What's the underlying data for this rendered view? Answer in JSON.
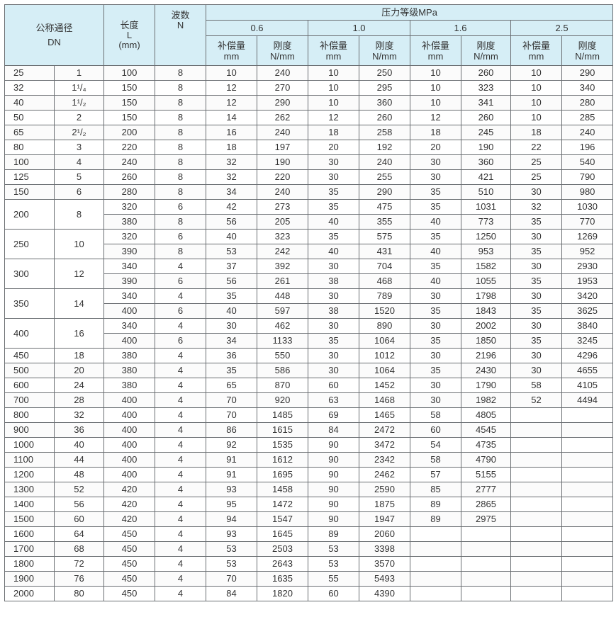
{
  "header": {
    "nominal_diameter": "公称通径",
    "dn": "DN",
    "length": "长度",
    "length_sym": "L",
    "length_unit": "(mm)",
    "waves": "波数",
    "waves_sym": "N",
    "pressure_class": "压力等级MPa",
    "pressures": [
      "0.6",
      "1.0",
      "1.6",
      "2.5"
    ],
    "comp_label": "补偿量",
    "comp_unit": "mm",
    "stiff_label": "刚度",
    "stiff_unit": "N/mm"
  },
  "groups": [
    {
      "dn": "25",
      "inch": "1",
      "rows": [
        {
          "L": "100",
          "N": "8",
          "v": [
            "10",
            "240",
            "10",
            "250",
            "10",
            "260",
            "10",
            "290"
          ]
        }
      ]
    },
    {
      "dn": "32",
      "inch": "1¹/₄",
      "rows": [
        {
          "L": "150",
          "N": "8",
          "v": [
            "12",
            "270",
            "10",
            "295",
            "10",
            "323",
            "10",
            "340"
          ]
        }
      ]
    },
    {
      "dn": "40",
      "inch": "1¹/₂",
      "rows": [
        {
          "L": "150",
          "N": "8",
          "v": [
            "12",
            "290",
            "10",
            "360",
            "10",
            "341",
            "10",
            "280"
          ]
        }
      ]
    },
    {
      "dn": "50",
      "inch": "2",
      "rows": [
        {
          "L": "150",
          "N": "8",
          "v": [
            "14",
            "262",
            "12",
            "260",
            "12",
            "260",
            "10",
            "285"
          ]
        }
      ]
    },
    {
      "dn": "65",
      "inch": "2¹/₂",
      "rows": [
        {
          "L": "200",
          "N": "8",
          "v": [
            "16",
            "240",
            "18",
            "258",
            "18",
            "245",
            "18",
            "240"
          ]
        }
      ]
    },
    {
      "dn": "80",
      "inch": "3",
      "rows": [
        {
          "L": "220",
          "N": "8",
          "v": [
            "18",
            "197",
            "20",
            "192",
            "20",
            "190",
            "22",
            "196"
          ]
        }
      ]
    },
    {
      "dn": "100",
      "inch": "4",
      "rows": [
        {
          "L": "240",
          "N": "8",
          "v": [
            "32",
            "190",
            "30",
            "240",
            "30",
            "360",
            "25",
            "540"
          ]
        }
      ]
    },
    {
      "dn": "125",
      "inch": "5",
      "rows": [
        {
          "L": "260",
          "N": "8",
          "v": [
            "32",
            "220",
            "30",
            "255",
            "30",
            "421",
            "25",
            "790"
          ]
        }
      ]
    },
    {
      "dn": "150",
      "inch": "6",
      "rows": [
        {
          "L": "280",
          "N": "8",
          "v": [
            "34",
            "240",
            "35",
            "290",
            "35",
            "510",
            "30",
            "980"
          ]
        }
      ]
    },
    {
      "dn": "200",
      "inch": "8",
      "rows": [
        {
          "L": "320",
          "N": "6",
          "v": [
            "42",
            "273",
            "35",
            "475",
            "35",
            "1031",
            "32",
            "1030"
          ]
        },
        {
          "L": "380",
          "N": "8",
          "v": [
            "56",
            "205",
            "40",
            "355",
            "40",
            "773",
            "35",
            "770"
          ]
        }
      ]
    },
    {
      "dn": "250",
      "inch": "10",
      "rows": [
        {
          "L": "320",
          "N": "6",
          "v": [
            "40",
            "323",
            "35",
            "575",
            "35",
            "1250",
            "30",
            "1269"
          ]
        },
        {
          "L": "390",
          "N": "8",
          "v": [
            "53",
            "242",
            "40",
            "431",
            "40",
            "953",
            "35",
            "952"
          ]
        }
      ]
    },
    {
      "dn": "300",
      "inch": "12",
      "rows": [
        {
          "L": "340",
          "N": "4",
          "v": [
            "37",
            "392",
            "30",
            "704",
            "35",
            "1582",
            "30",
            "2930"
          ]
        },
        {
          "L": "390",
          "N": "6",
          "v": [
            "56",
            "261",
            "38",
            "468",
            "40",
            "1055",
            "35",
            "1953"
          ]
        }
      ]
    },
    {
      "dn": "350",
      "inch": "14",
      "rows": [
        {
          "L": "340",
          "N": "4",
          "v": [
            "35",
            "448",
            "30",
            "789",
            "30",
            "1798",
            "30",
            "3420"
          ]
        },
        {
          "L": "400",
          "N": "6",
          "v": [
            "40",
            "597",
            "38",
            "1520",
            "35",
            "1843",
            "35",
            "3625"
          ]
        }
      ]
    },
    {
      "dn": "400",
      "inch": "16",
      "rows": [
        {
          "L": "340",
          "N": "4",
          "v": [
            "30",
            "462",
            "30",
            "890",
            "30",
            "2002",
            "30",
            "3840"
          ]
        },
        {
          "L": "400",
          "N": "6",
          "v": [
            "34",
            "1133",
            "35",
            "1064",
            "35",
            "1850",
            "35",
            "3245"
          ]
        }
      ]
    },
    {
      "dn": "450",
      "inch": "18",
      "rows": [
        {
          "L": "380",
          "N": "4",
          "v": [
            "36",
            "550",
            "30",
            "1012",
            "30",
            "2196",
            "30",
            "4296"
          ]
        }
      ]
    },
    {
      "dn": "500",
      "inch": "20",
      "rows": [
        {
          "L": "380",
          "N": "4",
          "v": [
            "35",
            "586",
            "30",
            "1064",
            "35",
            "2430",
            "30",
            "4655"
          ]
        }
      ]
    },
    {
      "dn": "600",
      "inch": "24",
      "rows": [
        {
          "L": "380",
          "N": "4",
          "v": [
            "65",
            "870",
            "60",
            "1452",
            "30",
            "1790",
            "58",
            "4105"
          ]
        }
      ]
    },
    {
      "dn": "700",
      "inch": "28",
      "rows": [
        {
          "L": "400",
          "N": "4",
          "v": [
            "70",
            "920",
            "63",
            "1468",
            "30",
            "1982",
            "52",
            "4494"
          ]
        }
      ]
    },
    {
      "dn": "800",
      "inch": "32",
      "rows": [
        {
          "L": "400",
          "N": "4",
          "v": [
            "70",
            "1485",
            "69",
            "1465",
            "58",
            "4805",
            "",
            ""
          ]
        }
      ]
    },
    {
      "dn": "900",
      "inch": "36",
      "rows": [
        {
          "L": "400",
          "N": "4",
          "v": [
            "86",
            "1615",
            "84",
            "2472",
            "60",
            "4545",
            "",
            ""
          ]
        }
      ]
    },
    {
      "dn": "1000",
      "inch": "40",
      "rows": [
        {
          "L": "400",
          "N": "4",
          "v": [
            "92",
            "1535",
            "90",
            "3472",
            "54",
            "4735",
            "",
            ""
          ]
        }
      ]
    },
    {
      "dn": "1100",
      "inch": "44",
      "rows": [
        {
          "L": "400",
          "N": "4",
          "v": [
            "91",
            "1612",
            "90",
            "2342",
            "58",
            "4790",
            "",
            ""
          ]
        }
      ]
    },
    {
      "dn": "1200",
      "inch": "48",
      "rows": [
        {
          "L": "400",
          "N": "4",
          "v": [
            "91",
            "1695",
            "90",
            "2462",
            "57",
            "5155",
            "",
            ""
          ]
        }
      ]
    },
    {
      "dn": "1300",
      "inch": "52",
      "rows": [
        {
          "L": "420",
          "N": "4",
          "v": [
            "93",
            "1458",
            "90",
            "2590",
            "85",
            "2777",
            "",
            ""
          ]
        }
      ]
    },
    {
      "dn": "1400",
      "inch": "56",
      "rows": [
        {
          "L": "420",
          "N": "4",
          "v": [
            "95",
            "1472",
            "90",
            "1875",
            "89",
            "2865",
            "",
            ""
          ]
        }
      ]
    },
    {
      "dn": "1500",
      "inch": "60",
      "rows": [
        {
          "L": "420",
          "N": "4",
          "v": [
            "94",
            "1547",
            "90",
            "1947",
            "89",
            "2975",
            "",
            ""
          ]
        }
      ]
    },
    {
      "dn": "1600",
      "inch": "64",
      "rows": [
        {
          "L": "450",
          "N": "4",
          "v": [
            "93",
            "1645",
            "89",
            "2060",
            "",
            "",
            "",
            ""
          ]
        }
      ]
    },
    {
      "dn": "1700",
      "inch": "68",
      "rows": [
        {
          "L": "450",
          "N": "4",
          "v": [
            "53",
            "2503",
            "53",
            "3398",
            "",
            "",
            "",
            ""
          ]
        }
      ]
    },
    {
      "dn": "1800",
      "inch": "72",
      "rows": [
        {
          "L": "450",
          "N": "4",
          "v": [
            "53",
            "2643",
            "53",
            "3570",
            "",
            "",
            "",
            ""
          ]
        }
      ]
    },
    {
      "dn": "1900",
      "inch": "76",
      "rows": [
        {
          "L": "450",
          "N": "4",
          "v": [
            "70",
            "1635",
            "55",
            "5493",
            "",
            "",
            "",
            ""
          ]
        }
      ]
    },
    {
      "dn": "2000",
      "inch": "80",
      "rows": [
        {
          "L": "450",
          "N": "4",
          "v": [
            "84",
            "1820",
            "60",
            "4390",
            "",
            "",
            "",
            ""
          ]
        }
      ]
    }
  ]
}
